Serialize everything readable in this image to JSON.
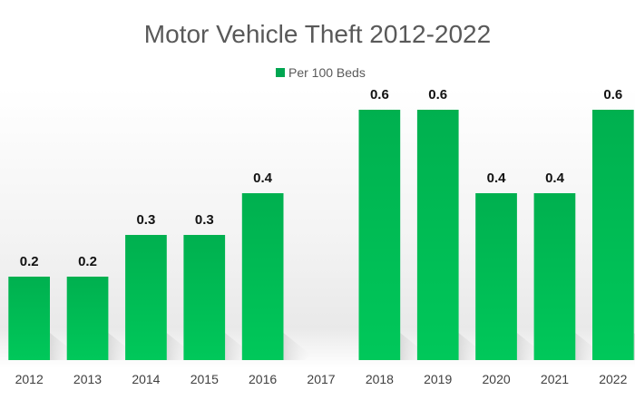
{
  "chart_data": {
    "type": "bar",
    "title": "Motor Vehicle Theft 2012-2022",
    "categories": [
      "2012",
      "2013",
      "2014",
      "2015",
      "2016",
      "2017",
      "2018",
      "2019",
      "2020",
      "2021",
      "2022"
    ],
    "series": [
      {
        "name": "Per 100 Beds",
        "values": [
          0.2,
          0.2,
          0.3,
          0.3,
          0.4,
          null,
          0.6,
          0.6,
          0.4,
          0.4,
          0.6
        ],
        "labels": [
          "0.2",
          "0.2",
          "0.3",
          "0.3",
          "0.4",
          "",
          "0.6",
          "0.6",
          "0.4",
          "0.4",
          "0.6"
        ],
        "color": "#00a651"
      }
    ],
    "xlabel": "",
    "ylabel": "",
    "ylim": [
      0,
      0.7
    ],
    "grid": false,
    "legend": "top-center"
  }
}
